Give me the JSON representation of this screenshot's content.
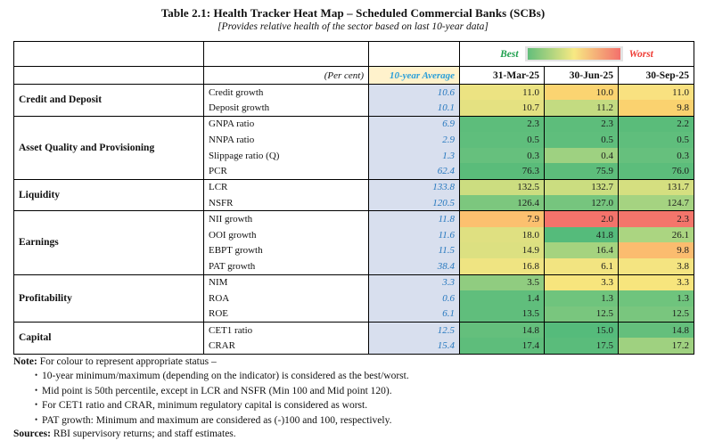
{
  "page": {
    "title": "Table 2.1: Health Tracker Heat Map – Scheduled Commercial Banks (SCBs)",
    "subtitle": "[Provides relative health of the sector based on last 10-year data]"
  },
  "legend": {
    "best_label": "Best",
    "worst_label": "Worst",
    "gradient_colors": [
      "#63BE7B",
      "#F7E983",
      "#F3706C"
    ],
    "best_label_color": "#1FA04E",
    "worst_label_color": "#EE3B34",
    "frame_color": "#e4e4e4"
  },
  "header": {
    "percent_label": "(Per cent)",
    "avg_label": "10-year Average",
    "date_columns": [
      "31-Mar-25",
      "30-Jun-25",
      "30-Sep-25"
    ]
  },
  "palette": {
    "avg_header_bg": "#FFF2CC",
    "avg_header_text": "#2B9FD9",
    "avg_cell_bg": "#D8DFEE",
    "avg_cell_text": "#2577BE"
  },
  "table": {
    "groups": [
      {
        "name": "Credit and Deposit",
        "rows": [
          {
            "indicator": "Credit growth",
            "avg": "10.6",
            "values": [
              "11.0",
              "10.0",
              "11.0"
            ],
            "cell_colors": [
              "#ECE382",
              "#FBD471",
              "#F9E180"
            ]
          },
          {
            "indicator": "Deposit growth",
            "avg": "10.1",
            "values": [
              "10.7",
              "11.2",
              "9.8"
            ],
            "cell_colors": [
              "#E4E181",
              "#C3DB81",
              "#FAD26F"
            ]
          }
        ]
      },
      {
        "name": "Asset Quality and Provisioning",
        "rows": [
          {
            "indicator": "GNPA ratio",
            "avg": "6.9",
            "values": [
              "2.3",
              "2.3",
              "2.2"
            ],
            "cell_colors": [
              "#5DBD7B",
              "#5DBD7B",
              "#5ABC7A"
            ]
          },
          {
            "indicator": "NNPA ratio",
            "avg": "2.9",
            "values": [
              "0.5",
              "0.5",
              "0.5"
            ],
            "cell_colors": [
              "#5FBE7C",
              "#5FBE7C",
              "#5FBE7C"
            ]
          },
          {
            "indicator": "Slippage ratio (Q)",
            "avg": "1.3",
            "values": [
              "0.3",
              "0.4",
              "0.3"
            ],
            "cell_colors": [
              "#66C07D",
              "#9ED181",
              "#66C07D"
            ]
          },
          {
            "indicator": "PCR",
            "avg": "62.4",
            "values": [
              "76.3",
              "75.9",
              "76.0"
            ],
            "cell_colors": [
              "#5ABC7A",
              "#5DBD7B",
              "#5CBD7B"
            ]
          }
        ]
      },
      {
        "name": "Liquidity",
        "rows": [
          {
            "indicator": "LCR",
            "avg": "133.8",
            "values": [
              "132.5",
              "132.7",
              "131.7"
            ],
            "cell_colors": [
              "#CCDD80",
              "#CBDD80",
              "#D5DF80"
            ]
          },
          {
            "indicator": "NSFR",
            "avg": "120.5",
            "values": [
              "126.4",
              "127.0",
              "124.7"
            ],
            "cell_colors": [
              "#7CC77E",
              "#76C57E",
              "#A5D381"
            ]
          }
        ]
      },
      {
        "name": "Earnings",
        "rows": [
          {
            "indicator": "NII growth",
            "avg": "11.8",
            "values": [
              "7.9",
              "2.0",
              "2.3"
            ],
            "cell_colors": [
              "#FCC06F",
              "#F4736B",
              "#F4756B"
            ]
          },
          {
            "indicator": "OOI growth",
            "avg": "11.6",
            "values": [
              "18.0",
              "41.8",
              "26.1"
            ],
            "cell_colors": [
              "#DFE081",
              "#55BB7B",
              "#ABD581"
            ]
          },
          {
            "indicator": "EBPT growth",
            "avg": "11.5",
            "values": [
              "14.9",
              "16.4",
              "9.8"
            ],
            "cell_colors": [
              "#DCE081",
              "#A5D37F",
              "#FBBC6F"
            ]
          },
          {
            "indicator": "PAT growth",
            "avg": "38.4",
            "values": [
              "16.8",
              "6.1",
              "3.8"
            ],
            "cell_colors": [
              "#EFE482",
              "#F2E481",
              "#F4E481"
            ]
          }
        ]
      },
      {
        "name": "Profitability",
        "rows": [
          {
            "indicator": "NIM",
            "avg": "3.3",
            "values": [
              "3.5",
              "3.3",
              "3.3"
            ],
            "cell_colors": [
              "#90CC80",
              "#F7E57D",
              "#F7E57D"
            ]
          },
          {
            "indicator": "ROA",
            "avg": "0.6",
            "values": [
              "1.4",
              "1.3",
              "1.3"
            ],
            "cell_colors": [
              "#60BE7C",
              "#6FC47D",
              "#6FC47D"
            ]
          },
          {
            "indicator": "ROE",
            "avg": "6.1",
            "values": [
              "13.5",
              "12.5",
              "12.5"
            ],
            "cell_colors": [
              "#60BE7C",
              "#79C67E",
              "#79C67E"
            ]
          }
        ]
      },
      {
        "name": "Capital",
        "rows": [
          {
            "indicator": "CET1 ratio",
            "avg": "12.5",
            "values": [
              "14.8",
              "15.0",
              "14.8"
            ],
            "cell_colors": [
              "#64BF7C",
              "#55BB7B",
              "#64BF7C"
            ]
          },
          {
            "indicator": "CRAR",
            "avg": "15.4",
            "values": [
              "17.4",
              "17.5",
              "17.2"
            ],
            "cell_colors": [
              "#5EBD7B",
              "#5ABC7B",
              "#9FD180"
            ]
          }
        ]
      }
    ]
  },
  "notes": {
    "note_label": "Note:",
    "note_intro": "For colour to represent appropriate status –",
    "bullet_char": "•",
    "bullets": [
      "10-year minimum/maximum (depending on the indicator) is considered as the best/worst.",
      "Mid point is 50th percentile, except in LCR and NSFR (Min 100 and Mid point 120).",
      "For CET1 ratio and CRAR, minimum regulatory capital is considered as worst.",
      "PAT growth: Minimum and maximum are considered as (-)100 and 100, respectively."
    ],
    "sources_label": "Sources:",
    "sources_text": "RBI supervisory returns; and staff estimates."
  }
}
